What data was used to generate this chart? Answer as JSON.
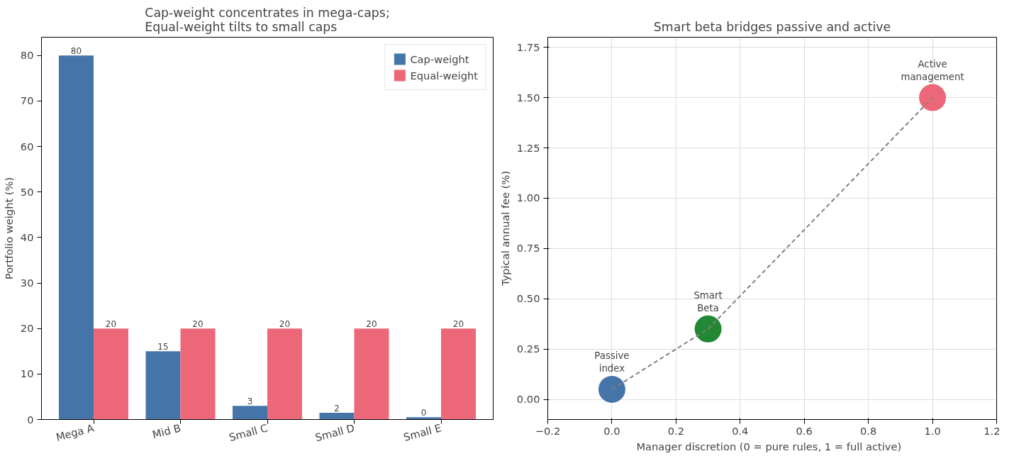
{
  "chart_data": [
    {
      "type": "bar",
      "title": "Cap-weight concentrates in mega-caps;\nEqual-weight tilts to small caps",
      "ylabel": "Portfolio weight (%)",
      "categories": [
        "Mega A",
        "Mid B",
        "Small C",
        "Small D",
        "Small E"
      ],
      "series": [
        {
          "name": "Cap-weight",
          "color": "#4575a8",
          "values": [
            80,
            15,
            3,
            1.5,
            0.5
          ],
          "value_labels": [
            "80",
            "15",
            "3",
            "2",
            "0"
          ]
        },
        {
          "name": "Equal-weight",
          "color": "#ec6878",
          "values": [
            20,
            20,
            20,
            20,
            20
          ],
          "value_labels": [
            "20",
            "20",
            "20",
            "20",
            "20"
          ]
        }
      ],
      "ylim": [
        0,
        84
      ],
      "yticks": [
        0,
        10,
        20,
        30,
        40,
        50,
        60,
        70,
        80
      ],
      "grid": false,
      "legend": "top right"
    },
    {
      "type": "scatter",
      "title": "Smart beta bridges passive and active",
      "xlabel": "Manager discretion  (0 = pure rules,  1 = full active)",
      "ylabel": "Typical annual fee (%)",
      "series": [
        {
          "type": "line",
          "color": "#808080",
          "line_style": "dashed",
          "marker": "none",
          "x": [
            0,
            0.3,
            1.0
          ],
          "values": [
            0.05,
            0.35,
            1.5
          ]
        },
        {
          "type": "scatter",
          "marker": "circle",
          "colors": [
            "#4575a8",
            "#228833",
            "#ec6878"
          ],
          "x": [
            0,
            0.3,
            1.0
          ],
          "values": [
            0.05,
            0.35,
            1.5
          ]
        }
      ],
      "annotations": [
        {
          "text": "Passive\nindex",
          "x": 0,
          "y": 0.05
        },
        {
          "text": "Smart\nBeta",
          "x": 0.3,
          "y": 0.35
        },
        {
          "text": "Active\nmanagement",
          "x": 1.0,
          "y": 1.5
        }
      ],
      "xlim": [
        -0.2,
        1.2
      ],
      "xticks": [
        {
          "value": -0.2,
          "label": "−0.2"
        },
        {
          "value": 0,
          "label": "0.0"
        },
        {
          "value": 0.2,
          "label": "0.2"
        },
        {
          "value": 0.4,
          "label": "0.4"
        },
        {
          "value": 0.6,
          "label": "0.6"
        },
        {
          "value": 0.8,
          "label": "0.8"
        },
        {
          "value": 1.0,
          "label": "1.0"
        },
        {
          "value": 1.2,
          "label": "1.2"
        }
      ],
      "ylim": [
        -0.1,
        1.8
      ],
      "yticks": [
        {
          "value": 0,
          "label": "0.00"
        },
        {
          "value": 0.25,
          "label": "0.25"
        },
        {
          "value": 0.5,
          "label": "0.50"
        },
        {
          "value": 0.75,
          "label": "0.75"
        },
        {
          "value": 1.0,
          "label": "1.00"
        },
        {
          "value": 1.25,
          "label": "1.25"
        },
        {
          "value": 1.5,
          "label": "1.50"
        },
        {
          "value": 1.75,
          "label": "1.75"
        }
      ],
      "grid": true
    }
  ]
}
